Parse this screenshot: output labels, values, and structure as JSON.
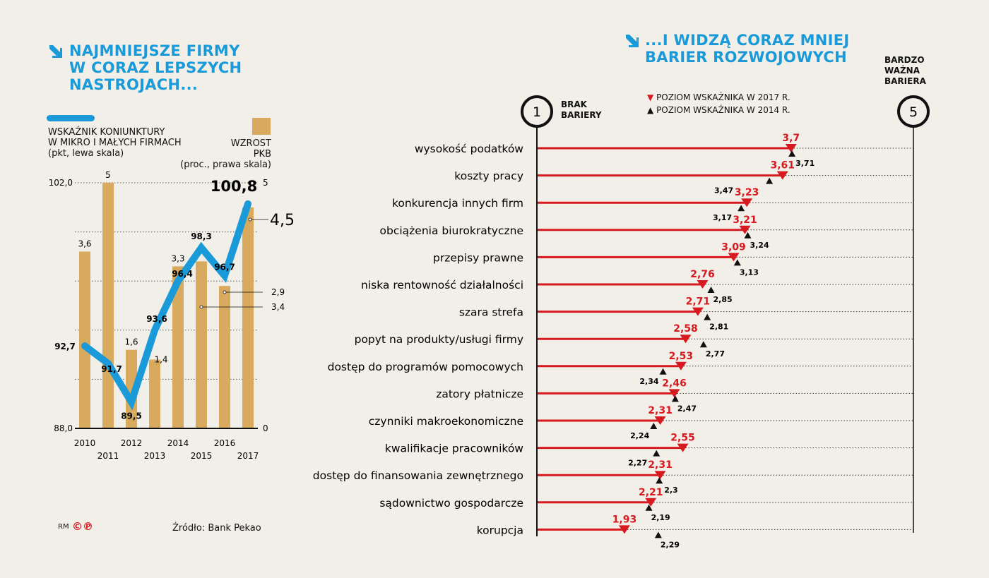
{
  "left": {
    "title": [
      "NAJMNIEJSZE FIRMY",
      "W CORAZ LEPSZYCH",
      "NASTROJACH..."
    ],
    "legend_line": [
      "WSKAŹNIK KONIUNKTURY",
      "W MIKRO I MAŁYCH FIRMACH",
      "(pkt, lewa skala)"
    ],
    "legend_bar": [
      "WZROST",
      "PKB",
      "(proc., prawa skala)"
    ],
    "source": "Źródło: Bank Pekao",
    "logo_text": "RM ©P"
  },
  "right": {
    "title": [
      "...I WIDZĄ CORAZ MNIEJ",
      "BARIER ROZWOJOWYCH"
    ],
    "scale_min_label": "1",
    "scale_max_label": "5",
    "min_caption": [
      "BRAK",
      "BARIERY"
    ],
    "max_caption": [
      "BARDZO",
      "WAŻNA",
      "BARIERA"
    ],
    "legend_2017": "POZIOM WSKAŹNIKA W 2017 R.",
    "legend_2014": "POZIOM WSKAŹNIKA W 2014 R."
  },
  "colors": {
    "background": "#f1efe8",
    "line": "#1a9ad9",
    "bar": "#d8aa5e",
    "red": "#d71920",
    "black": "#111111"
  },
  "chart_data": [
    {
      "type": "bar+line",
      "categories": [
        "2010",
        "2011",
        "2012",
        "2013",
        "2014",
        "2015",
        "2016",
        "2017"
      ],
      "series": [
        {
          "name": "WSKAŹNIK KONIUNKTURY W MIKRO I MAŁYCH FIRMACH",
          "type": "line",
          "axis": "left",
          "values": [
            92.7,
            91.7,
            89.5,
            93.6,
            96.4,
            98.3,
            96.7,
            100.8
          ],
          "labels": [
            "92,7",
            "91,7",
            "89,5",
            "93,6",
            "96,4",
            "98,3",
            "96,7",
            "100,8"
          ]
        },
        {
          "name": "WZROST PKB",
          "type": "bar",
          "axis": "right",
          "values": [
            3.6,
            5,
            1.6,
            1.4,
            3.3,
            3.4,
            2.9,
            4.5
          ],
          "labels": [
            "3,6",
            "5",
            "1,6",
            "1,4",
            "3,3",
            "3,4",
            "2,9",
            "4,5"
          ]
        }
      ],
      "ylim_left": [
        88.0,
        102.0
      ],
      "ylim_right": [
        0,
        5
      ],
      "left_tick_labels": [
        "88,0",
        "102,0"
      ],
      "right_tick_labels": [
        "0",
        "5"
      ],
      "grid": "dotted horizontal"
    },
    {
      "type": "dot-range",
      "xlim": [
        1,
        5
      ],
      "categories": [
        "wysokość podatków",
        "koszty pracy",
        "konkurencja innych firm",
        "obciążenia biurokratyczne",
        "przepisy prawne",
        "niska rentowność działalności",
        "szara strefa",
        "popyt na produkty/usługi firmy",
        "dostęp do programów pomocowych",
        "zatory płatnicze",
        "czynniki makroekonomiczne",
        "kwalifikacje pracowników",
        "dostęp do finansowania zewnętrznego",
        "sądownictwo gospodarcze",
        "korupcja"
      ],
      "series": [
        {
          "name": "POZIOM WSKAŹNIKA W 2017 R.",
          "marker": "down-triangle",
          "color": "#d71920",
          "values": [
            3.7,
            3.61,
            3.23,
            3.21,
            3.09,
            2.76,
            2.71,
            2.58,
            2.53,
            2.46,
            2.31,
            2.55,
            2.31,
            2.21,
            1.93
          ],
          "labels": [
            "3,7",
            "3,61",
            "3,23",
            "3,21",
            "3,09",
            "2,76",
            "2,71",
            "2,58",
            "2,53",
            "2,46",
            "2,31",
            "2,55",
            "2,31",
            "2,21",
            "1,93"
          ]
        },
        {
          "name": "POZIOM WSKAŹNIKA W 2014 R.",
          "marker": "up-triangle",
          "color": "#111111",
          "values": [
            3.71,
            3.47,
            3.17,
            3.24,
            3.13,
            2.85,
            2.81,
            2.77,
            2.34,
            2.47,
            2.24,
            2.27,
            2.3,
            2.19,
            2.29
          ],
          "labels": [
            "3,71",
            "3,47",
            "3,17",
            "3,24",
            "3,13",
            "2,85",
            "2,81",
            "2,77",
            "2,34",
            "2,47",
            "2,24",
            "2,27",
            "2,3",
            "2,19",
            "2,29"
          ]
        }
      ]
    }
  ]
}
